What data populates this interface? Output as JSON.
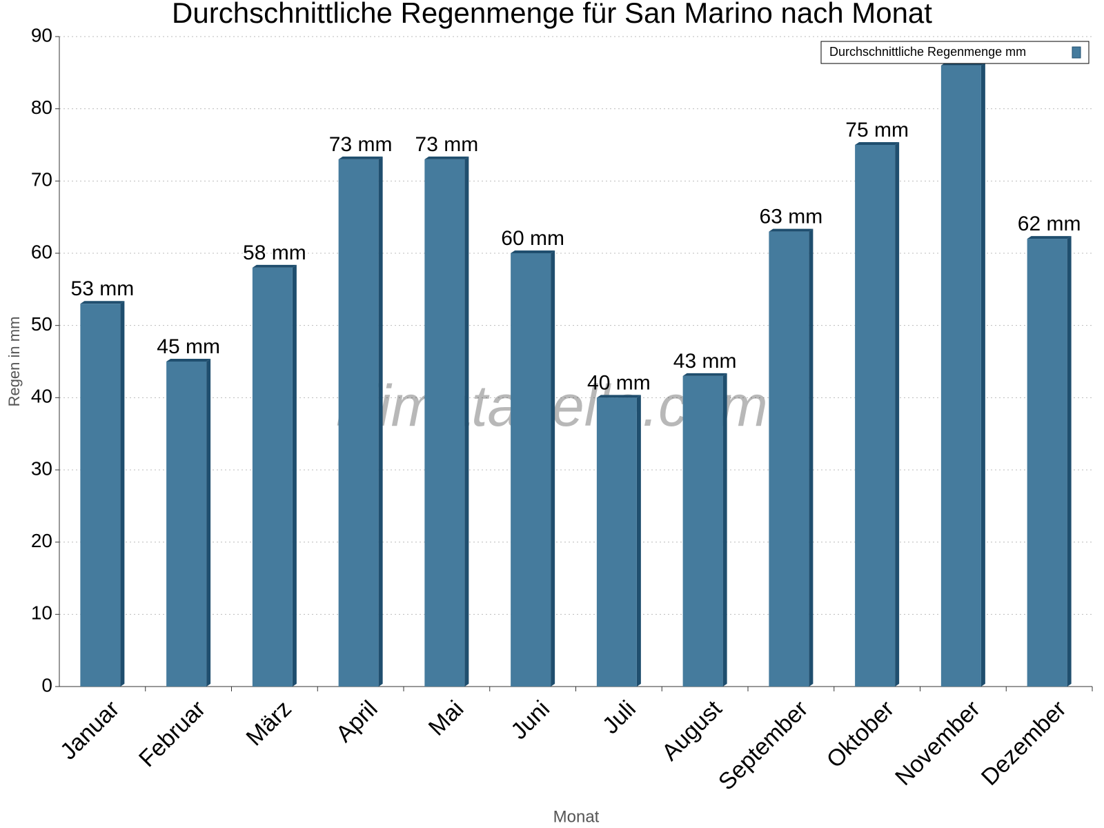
{
  "chart_data": {
    "type": "bar3d",
    "title": "Durchschnittliche Regenmenge für San Marino nach Monat",
    "x_label": "Monat",
    "y_label": "Regen in mm",
    "watermark": "klimatabelle.com",
    "categories": [
      "Januar",
      "Februar",
      "März",
      "April",
      "Mai",
      "Juni",
      "Juli",
      "August",
      "September",
      "Oktober",
      "November",
      "Dezember"
    ],
    "series": [
      {
        "name": "Durchschnittliche Regenmenge mm",
        "color": "#457b9d",
        "values": [
          53,
          45,
          58,
          73,
          73,
          60,
          40,
          43,
          63,
          75,
          86,
          62
        ],
        "value_labels": [
          "53 mm",
          "45 mm",
          "58 mm",
          "73 mm",
          "73 mm",
          "60 mm",
          "40 mm",
          "43 mm",
          "63 mm",
          "75 mm",
          null,
          "62 mm"
        ]
      }
    ],
    "ylim": [
      0,
      90
    ],
    "yticks": [
      0,
      10,
      20,
      30,
      40,
      50,
      60,
      70,
      80,
      90
    ],
    "grid": true,
    "legend": "top-right"
  }
}
